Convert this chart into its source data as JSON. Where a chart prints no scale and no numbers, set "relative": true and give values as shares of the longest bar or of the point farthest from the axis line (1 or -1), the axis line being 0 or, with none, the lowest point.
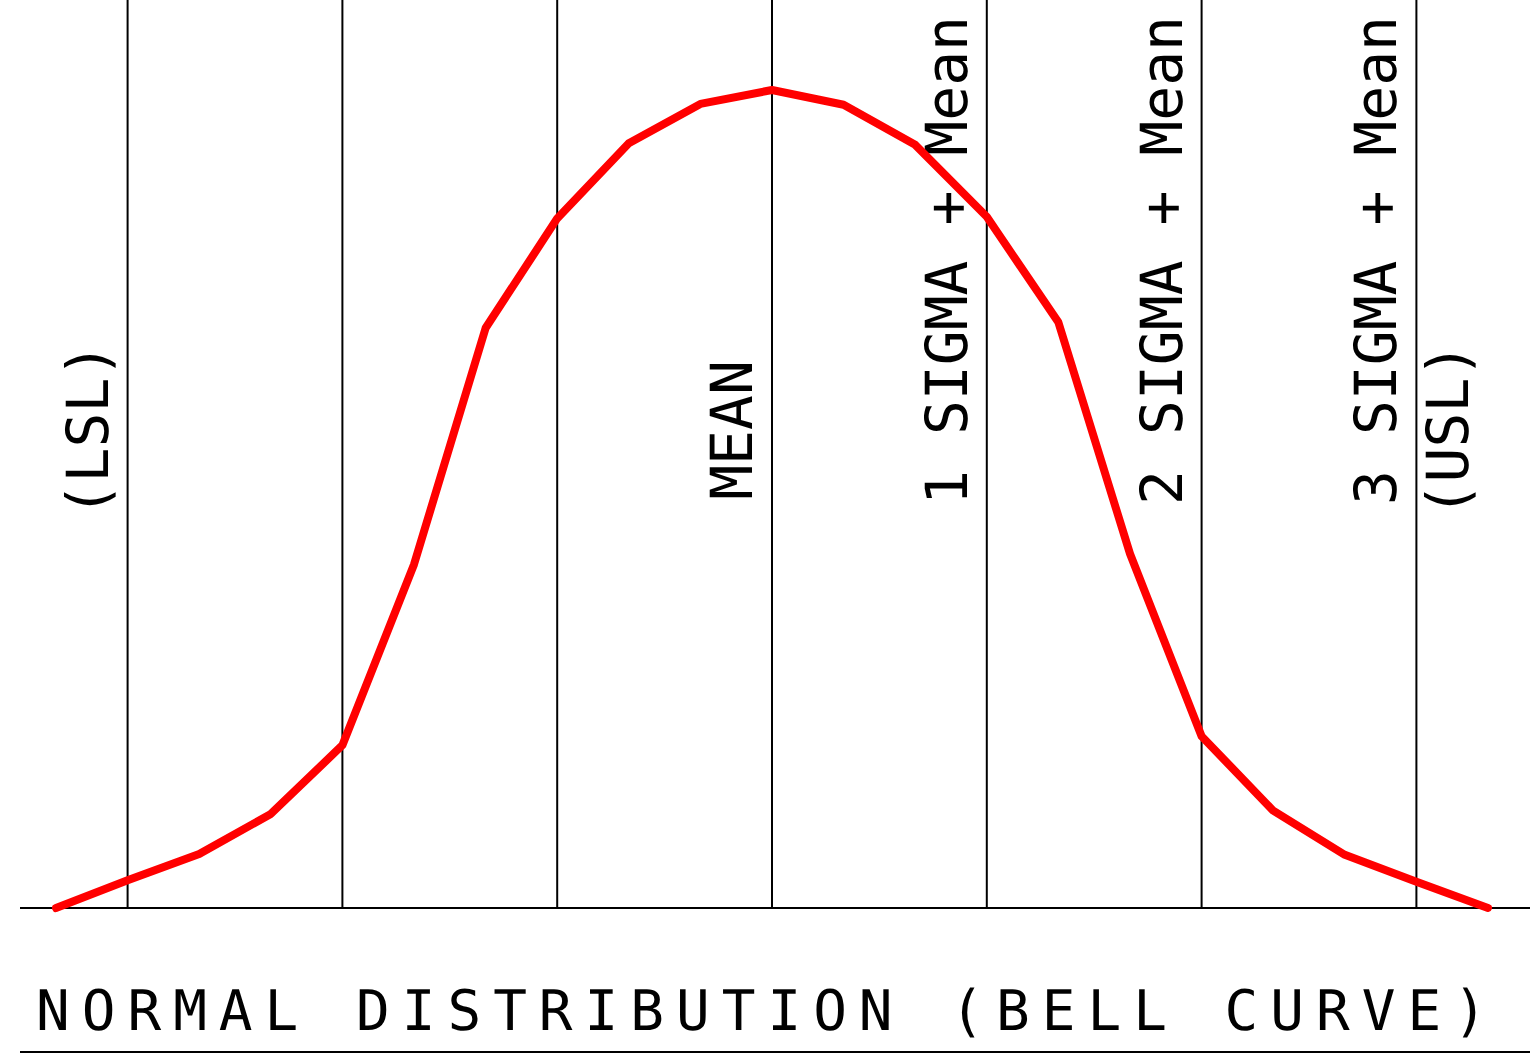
{
  "chart_data": {
    "type": "line",
    "title": "NORMAL DISTRIBUTION (BELL CURVE)",
    "relative": true,
    "marker": "none",
    "line_style": "solid",
    "grid": "x",
    "categories": [
      null,
      null,
      null,
      null,
      null,
      null,
      null,
      null,
      null,
      null,
      null,
      null,
      null,
      null,
      null,
      null,
      null,
      null,
      null,
      null,
      null
    ],
    "series": [
      {
        "color": "#ff0000",
        "values": [
          0,
          0.034,
          0.066,
          0.115,
          0.199,
          0.42,
          0.709,
          0.843,
          0.935,
          0.983,
          1,
          0.982,
          0.933,
          0.845,
          0.716,
          0.433,
          0.21,
          0.119,
          0.065,
          0.032,
          0
        ]
      }
    ],
    "annotations": [
      "(LSL)",
      "MEAN",
      "1 SIGMA + Mean",
      "2 SIGMA + Mean",
      "3 SIGMA + Mean",
      "(USL)"
    ]
  }
}
